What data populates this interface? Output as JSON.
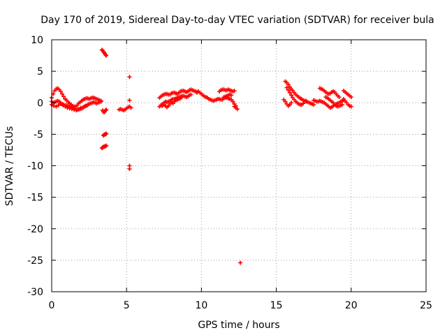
{
  "chart_data": {
    "type": "scatter",
    "title": "Day 170 of 2019, Sidereal Day-to-day VTEC variation (SDTVAR) for receiver bula",
    "xlabel": "GPS time / hours",
    "ylabel": "SDTVAR / TECUs",
    "xlim": [
      0,
      25
    ],
    "ylim": [
      -30,
      10
    ],
    "xticks": [
      0,
      5,
      10,
      15,
      20,
      25
    ],
    "yticks": [
      10,
      5,
      0,
      -5,
      -10,
      -15,
      -20,
      -25,
      -30
    ],
    "xtick_labels": [
      "0",
      "5",
      "10",
      "15",
      "20",
      "25"
    ],
    "ytick_labels": [
      "10",
      "5",
      "0",
      "-5",
      "-10",
      "-15",
      "-20",
      "-25",
      "-30"
    ],
    "grid": true,
    "marker": "+",
    "color": "#ff0000",
    "series": [
      {
        "name": "SDTVAR",
        "traces": [
          {
            "x": [
              0.0,
              0.1,
              0.2,
              0.3,
              0.4,
              0.5,
              0.6,
              0.7,
              0.8,
              0.9,
              1.0,
              1.1,
              1.2,
              1.3,
              1.4,
              1.5,
              1.6,
              1.7,
              1.8,
              1.9,
              2.0,
              2.1,
              2.2,
              2.3,
              2.4,
              2.5,
              2.6,
              2.7,
              2.8,
              2.9,
              3.0,
              3.1,
              3.2,
              3.3
            ],
            "y": [
              0.8,
              1.4,
              1.9,
              2.2,
              2.3,
              2.1,
              1.8,
              1.4,
              1.0,
              0.6,
              0.4,
              0.1,
              -0.1,
              -0.3,
              -0.5,
              -0.6,
              -0.6,
              -0.4,
              -0.1,
              0.1,
              0.3,
              0.5,
              0.6,
              0.7,
              0.7,
              0.6,
              0.7,
              0.8,
              0.8,
              0.7,
              0.6,
              0.5,
              0.4,
              0.3
            ]
          },
          {
            "x": [
              0.0,
              0.1,
              0.2,
              0.3,
              0.4,
              0.5,
              0.6,
              0.7,
              0.8,
              0.9,
              1.0,
              1.1,
              1.2,
              1.3,
              1.4,
              1.5,
              1.6,
              1.7,
              1.8,
              1.9,
              2.0,
              2.1,
              2.2,
              2.3,
              2.4,
              2.5,
              2.6,
              2.7,
              2.8,
              2.9,
              3.0,
              3.1,
              3.2,
              3.3
            ],
            "y": [
              0.2,
              0.0,
              0.1,
              0.2,
              0.3,
              0.2,
              0.0,
              -0.2,
              -0.3,
              -0.4,
              -0.4,
              -0.5,
              -0.6,
              -0.7,
              -0.8,
              -0.9,
              -1.0,
              -1.1,
              -1.1,
              -1.0,
              -0.9,
              -0.8,
              -0.6,
              -0.5,
              -0.3,
              -0.2,
              -0.1,
              0.0,
              0.1,
              0.0,
              -0.1,
              0.0,
              0.1,
              0.2
            ]
          },
          {
            "x": [
              0.0,
              0.15,
              0.3,
              0.45,
              0.6,
              0.75,
              0.9,
              1.05,
              1.2,
              1.35,
              1.5,
              1.65,
              1.8,
              1.95,
              2.1,
              2.25,
              2.4
            ],
            "y": [
              -0.3,
              -0.5,
              -0.6,
              -0.4,
              -0.2,
              -0.4,
              -0.6,
              -0.8,
              -0.9,
              -1.0,
              -1.1,
              -1.2,
              -1.0,
              -0.8,
              -0.7,
              -0.5,
              -0.4
            ]
          },
          {
            "x": [
              3.35,
              3.4,
              3.45,
              3.5,
              3.55,
              3.6,
              3.65
            ],
            "y": [
              8.4,
              8.3,
              8.1,
              8.0,
              7.8,
              7.6,
              7.5
            ]
          },
          {
            "x": [
              3.4,
              3.45,
              3.5,
              3.55,
              3.6,
              3.65
            ],
            "y": [
              -1.2,
              -1.4,
              -1.5,
              -1.4,
              -1.2,
              -1.1
            ]
          },
          {
            "x": [
              3.45,
              3.5,
              3.55,
              3.6,
              3.65
            ],
            "y": [
              -5.2,
              -5.1,
              -5.0,
              -5.0,
              -4.9
            ]
          },
          {
            "x": [
              3.35,
              3.4,
              3.45,
              3.5,
              3.55,
              3.6,
              3.65
            ],
            "y": [
              -7.2,
              -7.1,
              -7.0,
              -7.0,
              -6.9,
              -6.9,
              -6.8
            ]
          },
          {
            "x": [
              4.5,
              4.6,
              4.7,
              4.8,
              4.9,
              5.0,
              5.1,
              5.2,
              5.3
            ],
            "y": [
              -1.1,
              -1.0,
              -1.1,
              -1.2,
              -1.1,
              -0.9,
              -0.7,
              -0.6,
              -0.8
            ]
          },
          {
            "x": [
              5.2,
              5.2,
              5.2,
              5.2
            ],
            "y": [
              4.1,
              0.4,
              -10.0,
              -10.5
            ]
          },
          {
            "x": [
              7.2,
              7.3,
              7.4,
              7.5,
              7.6,
              7.7,
              7.8,
              7.9,
              8.0,
              8.1,
              8.2,
              8.3,
              8.4,
              8.5,
              8.6,
              8.7,
              8.8,
              8.9,
              9.0,
              9.1,
              9.2,
              9.3,
              9.4,
              9.5,
              9.6,
              9.7
            ],
            "y": [
              0.8,
              1.0,
              1.2,
              1.3,
              1.4,
              1.4,
              1.3,
              1.3,
              1.5,
              1.6,
              1.6,
              1.5,
              1.4,
              1.6,
              1.8,
              1.9,
              1.9,
              1.8,
              1.7,
              1.8,
              2.0,
              2.1,
              2.0,
              1.9,
              1.8,
              1.6
            ]
          },
          {
            "x": [
              7.2,
              7.3,
              7.4,
              7.5,
              7.6,
              7.7,
              7.8,
              7.9,
              8.0,
              8.1,
              8.2,
              8.3,
              8.4,
              8.5,
              8.6,
              8.7,
              8.8,
              8.9,
              9.0,
              9.1,
              9.2,
              9.3
            ],
            "y": [
              -0.6,
              -0.4,
              -0.2,
              0.0,
              0.2,
              0.1,
              0.2,
              0.3,
              0.5,
              0.6,
              0.6,
              0.7,
              0.8,
              0.9,
              1.0,
              1.1,
              1.1,
              1.0,
              0.9,
              1.0,
              1.2,
              1.3
            ]
          },
          {
            "x": [
              7.3,
              7.4,
              7.5,
              7.6,
              7.7,
              7.8,
              7.9,
              8.0,
              8.1,
              8.2,
              8.3,
              8.4,
              8.5,
              8.6,
              8.7
            ],
            "y": [
              -0.4,
              -0.5,
              -0.3,
              -0.5,
              -0.7,
              -0.5,
              -0.2,
              0.1,
              -0.1,
              0.2,
              0.4,
              0.5,
              0.6,
              0.7,
              0.9
            ]
          },
          {
            "x": [
              9.7,
              9.8,
              9.9,
              10.0,
              10.1,
              10.2,
              10.3,
              10.4
            ],
            "y": [
              1.7,
              1.8,
              1.6,
              1.4,
              1.2,
              1.0,
              0.9,
              0.8
            ]
          },
          {
            "x": [
              10.5,
              10.6,
              10.7,
              10.8,
              10.9,
              11.0,
              11.1,
              11.2,
              11.3,
              11.4,
              11.5,
              11.6,
              11.7,
              11.8,
              11.9,
              12.0,
              12.1,
              12.2,
              12.3
            ],
            "y": [
              0.6,
              0.5,
              0.4,
              0.3,
              0.4,
              0.5,
              0.6,
              0.6,
              0.5,
              0.5,
              0.7,
              0.8,
              0.8,
              0.7,
              0.6,
              0.5,
              0.2,
              -0.2,
              -0.5
            ]
          },
          {
            "x": [
              11.2,
              11.3,
              11.4,
              11.5,
              11.6,
              11.7,
              11.8,
              11.9,
              12.0,
              12.1,
              12.2
            ],
            "y": [
              1.8,
              2.0,
              2.1,
              2.1,
              2.0,
              2.0,
              2.1,
              2.0,
              1.9,
              1.8,
              1.9
            ]
          },
          {
            "x": [
              11.5,
              11.6,
              11.7,
              11.8,
              11.9,
              12.0
            ],
            "y": [
              0.9,
              1.0,
              1.1,
              1.2,
              1.3,
              1.2
            ]
          },
          {
            "x": [
              12.2,
              12.3,
              12.4
            ],
            "y": [
              -0.6,
              -0.8,
              -1.0
            ]
          },
          {
            "x": [
              12.6
            ],
            "y": [
              -25.4
            ]
          },
          {
            "x": [
              15.6,
              15.7,
              15.8,
              15.9,
              16.0,
              16.1,
              16.2,
              16.3,
              16.4,
              16.5,
              16.6,
              16.7,
              16.8,
              16.9,
              17.0,
              17.1,
              17.2,
              17.3,
              17.4,
              17.5
            ],
            "y": [
              3.4,
              3.2,
              2.9,
              2.5,
              2.2,
              1.9,
              1.6,
              1.3,
              1.1,
              0.9,
              0.7,
              0.6,
              0.4,
              0.3,
              0.2,
              0.1,
              0.0,
              -0.1,
              -0.2,
              -0.3
            ]
          },
          {
            "x": [
              15.7,
              15.8,
              15.9,
              16.0,
              16.1,
              16.2,
              16.3,
              16.4,
              16.5,
              16.6,
              16.7,
              16.8,
              16.9,
              17.0
            ],
            "y": [
              2.4,
              2.0,
              1.6,
              1.2,
              0.8,
              0.5,
              0.2,
              0.0,
              -0.2,
              -0.3,
              -0.3,
              -0.1,
              0.2,
              0.3
            ]
          },
          {
            "x": [
              15.5,
              15.6,
              15.7,
              15.8,
              15.9,
              16.0
            ],
            "y": [
              0.5,
              0.2,
              -0.2,
              -0.5,
              -0.3,
              0.0
            ]
          },
          {
            "x": [
              17.5,
              17.6,
              17.7,
              17.8,
              17.9,
              18.0,
              18.1,
              18.2,
              18.3,
              18.4,
              18.5,
              18.6,
              18.7,
              18.8,
              18.9,
              19.0,
              19.1,
              19.2,
              19.3,
              19.4,
              19.5
            ],
            "y": [
              0.4,
              0.3,
              0.2,
              0.2,
              0.3,
              0.2,
              0.1,
              0.0,
              -0.2,
              -0.4,
              -0.6,
              -0.8,
              -0.7,
              -0.5,
              -0.3,
              -0.2,
              -0.1,
              0.0,
              0.2,
              0.3,
              0.4
            ]
          },
          {
            "x": [
              17.9,
              18.0,
              18.1,
              18.2,
              18.3,
              18.4,
              18.5,
              18.6,
              18.7,
              18.8,
              18.9,
              19.0,
              19.1,
              19.2
            ],
            "y": [
              2.3,
              2.2,
              2.1,
              1.9,
              1.7,
              1.5,
              1.4,
              1.5,
              1.7,
              1.8,
              1.7,
              1.4,
              1.1,
              0.9
            ]
          },
          {
            "x": [
              18.3,
              18.4,
              18.5,
              18.6,
              18.7,
              18.8,
              18.9,
              19.0,
              19.1,
              19.2,
              19.3,
              19.4
            ],
            "y": [
              0.9,
              0.8,
              0.6,
              0.4,
              0.2,
              0.0,
              -0.3,
              -0.5,
              -0.6,
              -0.5,
              -0.4,
              -0.3
            ]
          },
          {
            "x": [
              19.5,
              19.6,
              19.7,
              19.8,
              19.9,
              20.0
            ],
            "y": [
              1.9,
              1.7,
              1.5,
              1.3,
              1.1,
              0.9
            ]
          },
          {
            "x": [
              19.5,
              19.6,
              19.7,
              19.8,
              19.9,
              20.0
            ],
            "y": [
              0.6,
              0.3,
              0.0,
              -0.3,
              -0.5,
              -0.6
            ]
          }
        ]
      }
    ]
  }
}
